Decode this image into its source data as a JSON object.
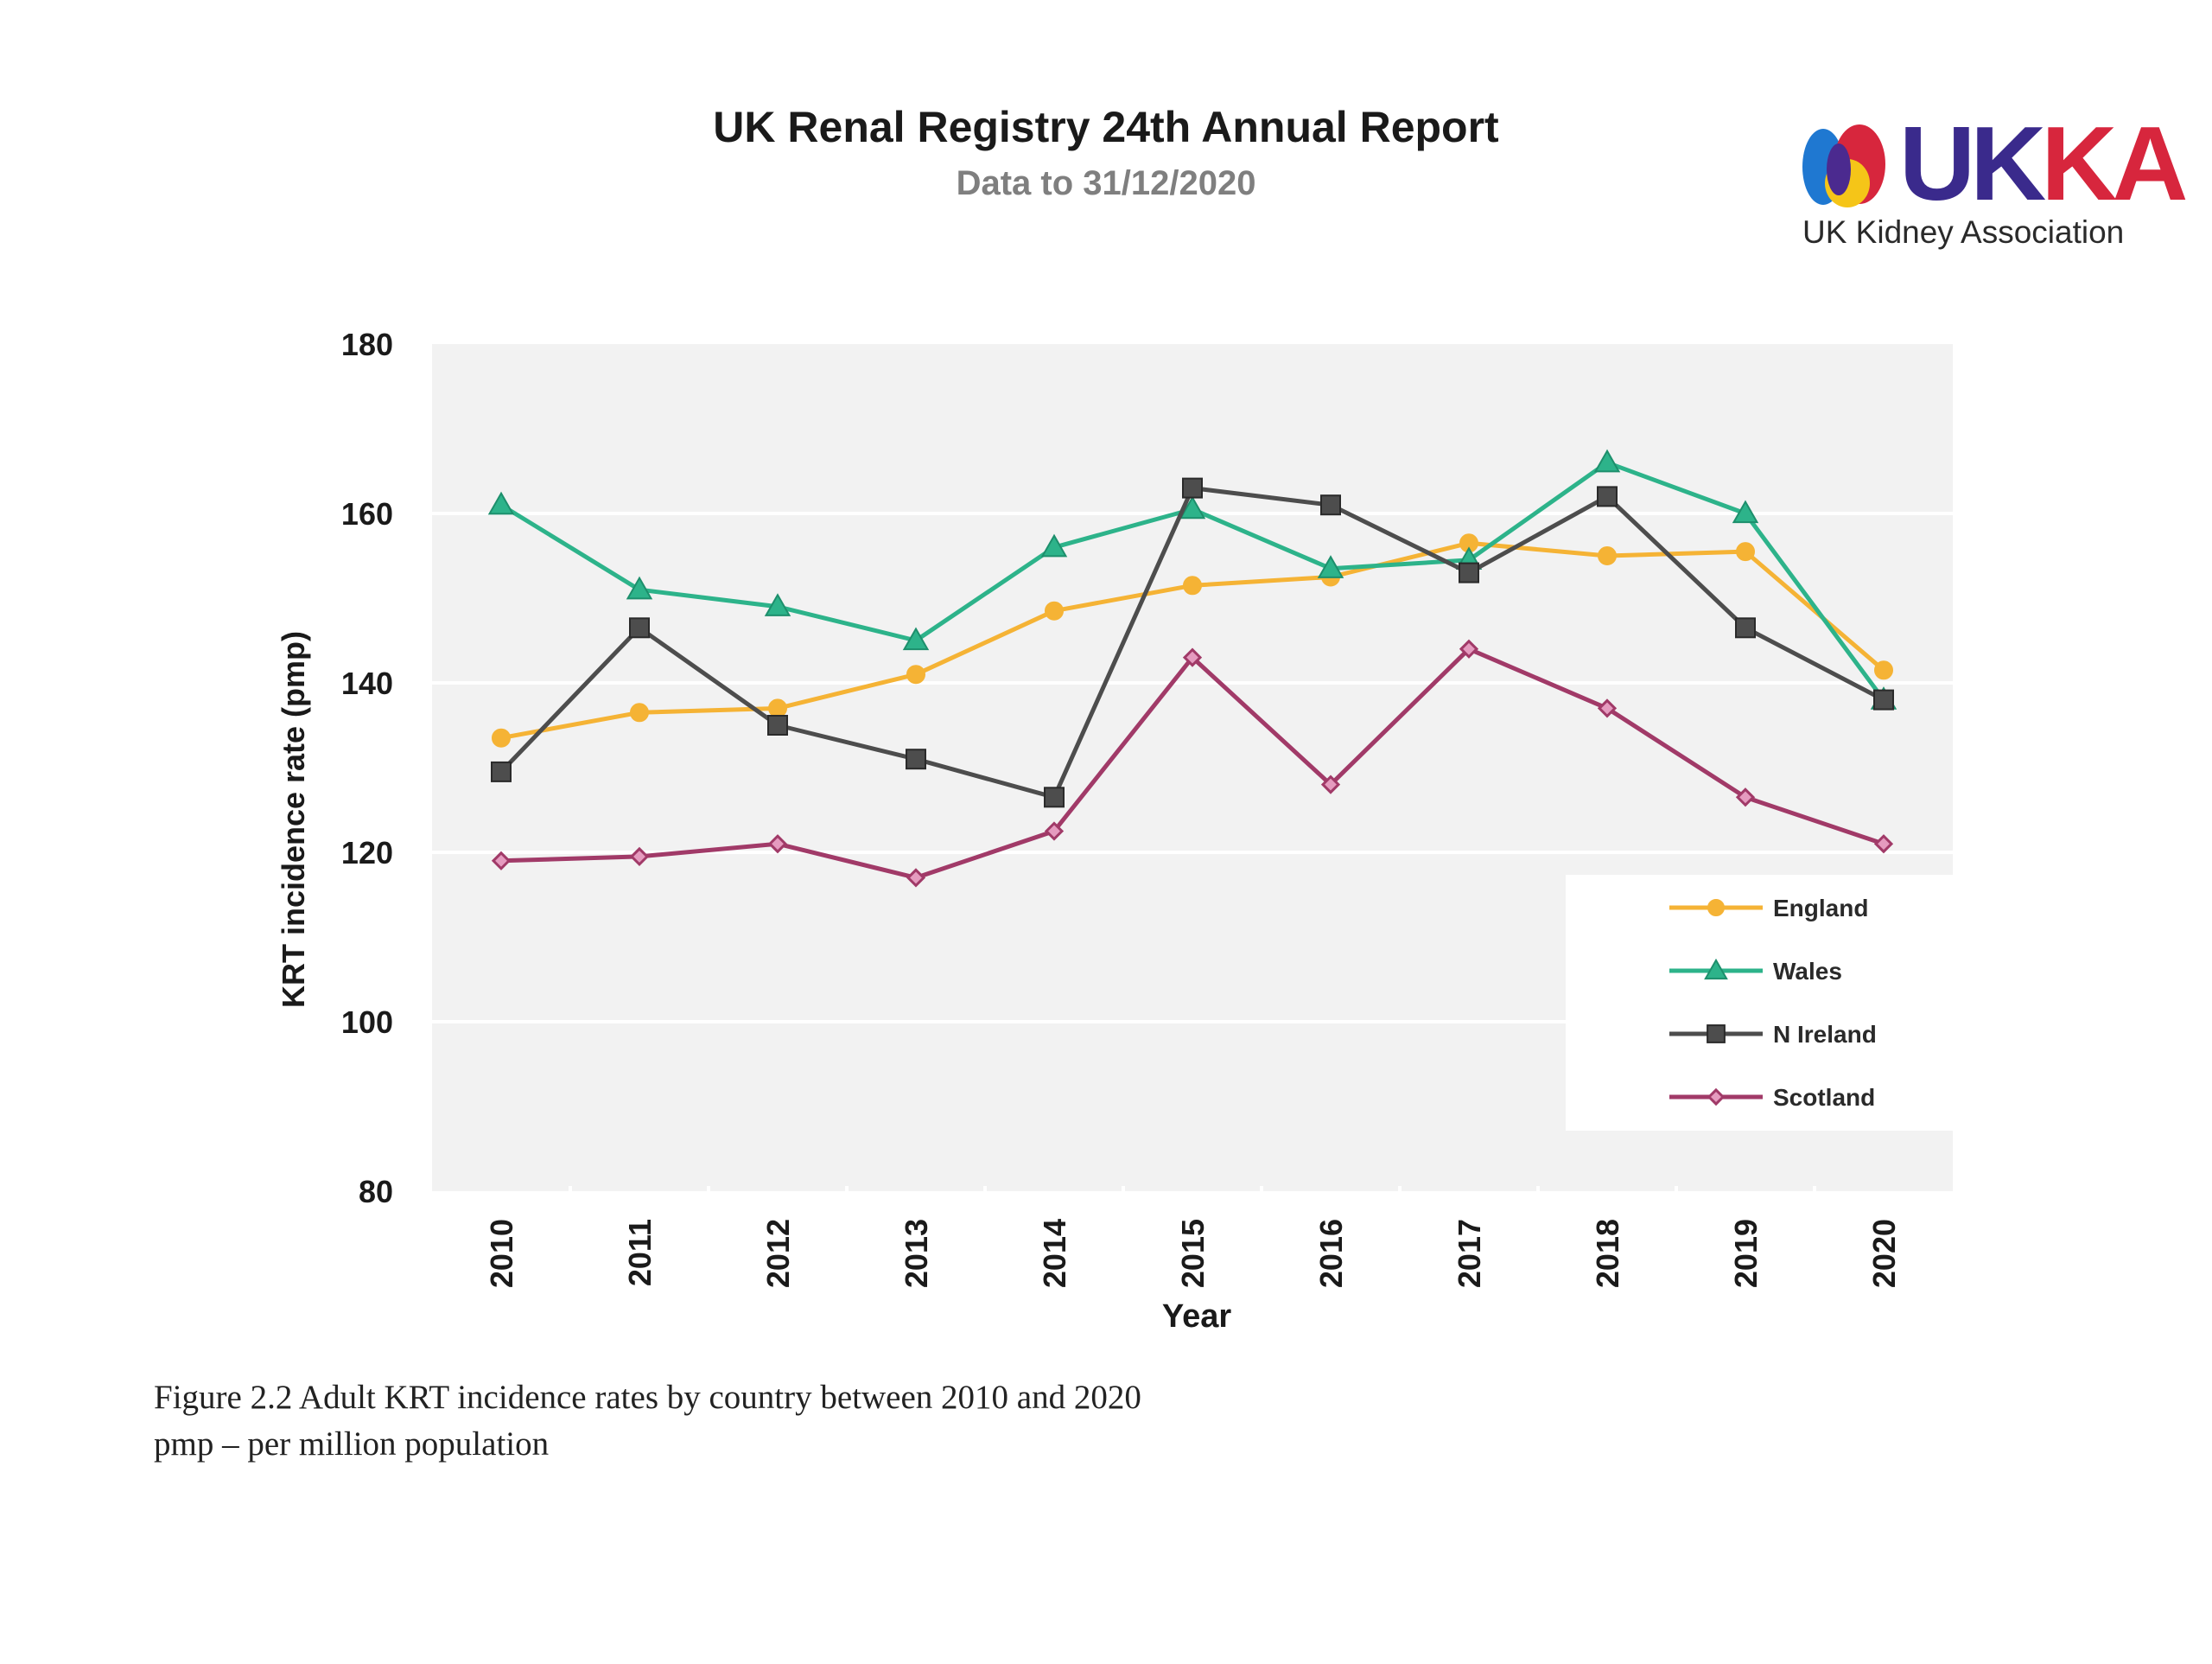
{
  "header": {
    "title": "UK Renal Registry 24th Annual Report",
    "subtitle": "Data to 31/12/2020"
  },
  "logo": {
    "wordmark": "UKKA",
    "tagline": "UK Kidney Association",
    "colors": {
      "wordmark": "#3a2a8c",
      "blue": "#1f78d1",
      "red": "#d7263d",
      "yellow": "#f5c518",
      "purple": "#4b2a8f"
    }
  },
  "chart_data": {
    "type": "line",
    "title": "",
    "xlabel": "Year",
    "ylabel": "KRT incidence rate (pmp)",
    "ylim": [
      80,
      180
    ],
    "yticks": [
      80,
      100,
      120,
      140,
      160,
      180
    ],
    "grid": true,
    "legend_position": "bottom-right",
    "categories": [
      "2010",
      "2011",
      "2012",
      "2013",
      "2014",
      "2015",
      "2016",
      "2017",
      "2018",
      "2019",
      "2020"
    ],
    "series": [
      {
        "name": "England",
        "color": "#f5b335",
        "marker": "circle",
        "values": [
          133.5,
          136.5,
          137,
          141,
          148.5,
          151.5,
          152.5,
          156.5,
          155,
          155.5,
          141.5
        ]
      },
      {
        "name": "Wales",
        "color": "#2db38a",
        "marker": "triangle",
        "values": [
          161,
          151,
          149,
          145,
          156,
          160.5,
          153.5,
          154.5,
          166,
          160,
          138
        ]
      },
      {
        "name": "N Ireland",
        "color": "#4d4d4d",
        "marker": "square",
        "values": [
          129.5,
          146.5,
          135,
          131,
          126.5,
          163,
          161,
          153,
          162,
          146.5,
          138
        ]
      },
      {
        "name": "Scotland",
        "color": "#a13a68",
        "marker": "diamond",
        "values": [
          119,
          119.5,
          121,
          117,
          122.5,
          143,
          128,
          144,
          137,
          126.5,
          121
        ]
      }
    ]
  },
  "caption": {
    "line1": "Figure 2.2 Adult KRT incidence rates by country between 2010 and 2020",
    "line2": "pmp – per million population"
  }
}
